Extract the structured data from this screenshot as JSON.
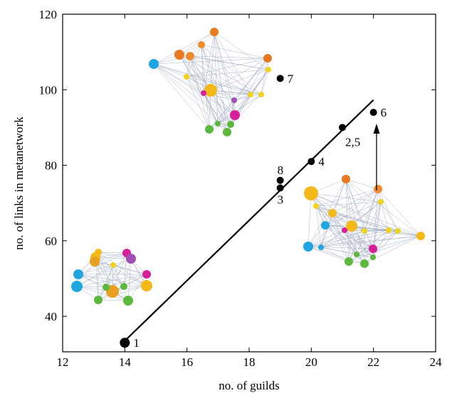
{
  "chart_data": {
    "type": "scatter",
    "xlabel": "no. of guilds",
    "ylabel": "no. of links in metanetwork",
    "xlim": [
      12,
      24
    ],
    "ylim": [
      30.6,
      120
    ],
    "xticks": [
      12,
      14,
      16,
      18,
      20,
      22,
      24
    ],
    "yticks": [
      40,
      60,
      80,
      100,
      120
    ],
    "series": [
      {
        "type": "scatter",
        "color": "#000000",
        "x": [
          14,
          19,
          19,
          20,
          21,
          22,
          19
        ],
        "values": [
          33,
          74,
          76,
          81,
          90,
          94,
          103
        ],
        "point_labels": [
          "1",
          "3",
          "8",
          "4",
          "2,5",
          "6",
          "7"
        ]
      },
      {
        "type": "line",
        "color": "#000000",
        "x": [
          14,
          22
        ],
        "values": [
          33.5,
          97.3
        ]
      }
    ]
  }
}
